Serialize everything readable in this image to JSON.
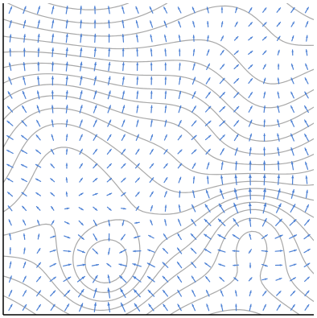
{
  "chart_data": {
    "type": "vector-field-contour",
    "title": "",
    "xlabel": "",
    "ylabel": "",
    "xlim": [
      -3,
      3
    ],
    "ylim": [
      -3,
      3
    ],
    "grid": false,
    "contour_color": "#a8a8a8",
    "arrow_color": "#4a7fd4",
    "axes_color": "#000000",
    "contour_levels": [
      -3.5,
      -3.1,
      -2.7,
      -2.3,
      -1.9,
      -1.5,
      -1.1,
      -0.7,
      -0.3,
      0.1,
      0.5,
      0.9,
      1.3,
      1.7,
      2.1,
      2.5,
      2.9,
      3.3,
      3.7,
      4.1,
      4.5,
      4.9,
      5.3,
      5.7,
      6.1,
      6.5
    ],
    "arrow_grid": {
      "nx": 22,
      "ny": 22
    },
    "potential_components": [
      {
        "type": "linear_y",
        "coefficient": 1.0
      },
      {
        "type": "sin_x_cos_y",
        "amplitude": 0.6,
        "kx": 1.1,
        "ky": 0.9
      },
      {
        "type": "gaussian",
        "center": [
          -1.0,
          -2.1
        ],
        "amplitude": 1.6,
        "sigma": 0.55
      },
      {
        "type": "gaussian",
        "center": [
          1.8,
          -1.3
        ],
        "amplitude": -1.9,
        "sigma": 0.65
      },
      {
        "type": "gaussian",
        "center": [
          -2.2,
          0.8
        ],
        "amplitude": -1.0,
        "sigma": 1.0
      },
      {
        "type": "gaussian",
        "center": [
          0.6,
          0.7
        ],
        "amplitude": -0.8,
        "sigma": 0.75
      },
      {
        "type": "gaussian",
        "center": [
          2.2,
          1.4
        ],
        "amplitude": 0.6,
        "sigma": 0.9
      }
    ]
  }
}
